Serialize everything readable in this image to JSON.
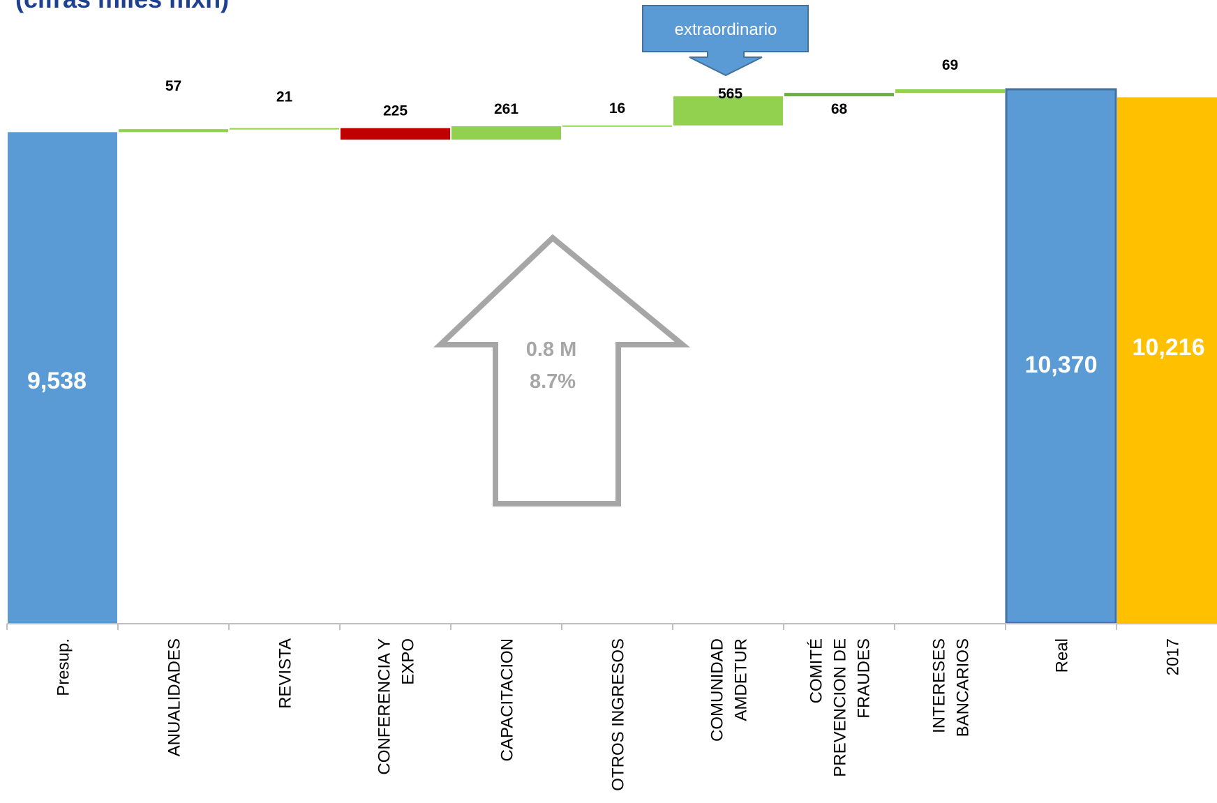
{
  "title": "(cifras miles mxn)",
  "callout": {
    "text": "extraordinario"
  },
  "big_arrow": {
    "line1": "0.8 M",
    "line2": "8.7%"
  },
  "colors": {
    "total_blue": "#5b9bd5",
    "total_gold": "#ffc000",
    "increase": "#92d050",
    "increase_dark": "#70ad47",
    "decrease": "#c00000",
    "arrow_gray": "#a6a6a6",
    "callout_blue": "#5b9bd5",
    "title_blue": "#1f3f8f"
  },
  "chart_data": {
    "type": "bar",
    "subtype": "waterfall",
    "categories": [
      "Presup.",
      "ANUALIDADES",
      "REVISTA",
      "CONFERENCIA Y EXPO",
      "CAPACITACION",
      "OTROS INGRESOS",
      "COMUNIDAD AMDETUR",
      "COMITÉ PREVENCION DE FRAUDES",
      "INTERESES BANCARIOS",
      "Real",
      "2017"
    ],
    "category_label_lines": [
      [
        "Presup."
      ],
      [
        "ANUALIDADES"
      ],
      [
        "REVISTA"
      ],
      [
        "CONFERENCIA Y",
        "EXPO"
      ],
      [
        "CAPACITACION"
      ],
      [
        "OTROS INGRESOS"
      ],
      [
        "COMUNIDAD",
        "AMDETUR"
      ],
      [
        "COMITÉ",
        "PREVENCION DE",
        "FRAUDES"
      ],
      [
        "INTERESES",
        "BANCARIOS"
      ],
      [
        "Real"
      ],
      [
        "2017"
      ]
    ],
    "values": [
      9538,
      57,
      21,
      -225,
      261,
      16,
      565,
      68,
      69,
      10370,
      10216
    ],
    "labels": [
      "9,538",
      "57",
      "21",
      "225",
      "261",
      "16",
      "565",
      "68",
      "69",
      "10,370",
      "10,216"
    ],
    "kinds": [
      "total",
      "delta",
      "delta",
      "delta",
      "delta",
      "delta",
      "delta",
      "delta",
      "delta",
      "total",
      "total"
    ],
    "ylim": [
      0,
      10370
    ],
    "grid": false,
    "legend": "none"
  }
}
